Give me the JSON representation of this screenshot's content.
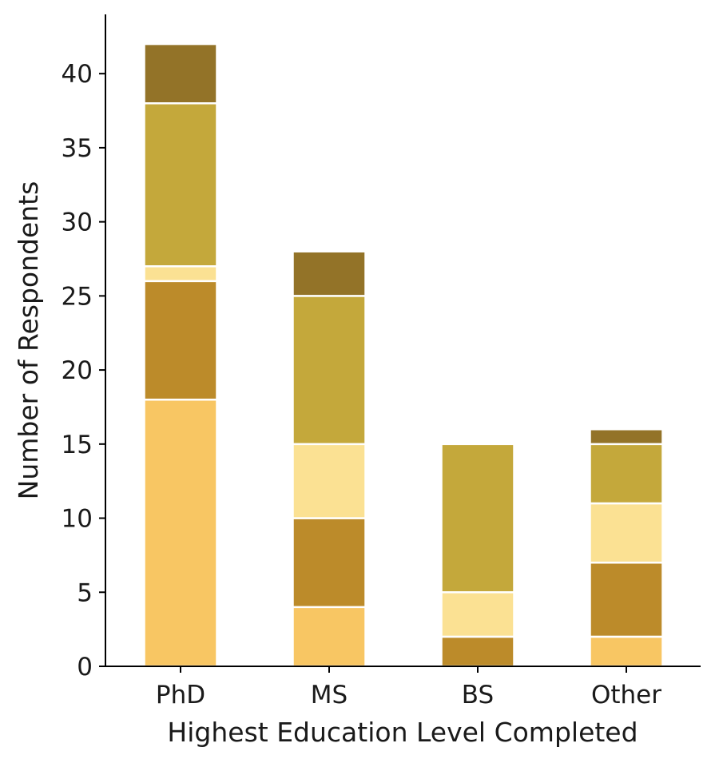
{
  "chart_data": {
    "type": "bar",
    "stacked": true,
    "categories": [
      "PhD",
      "MS",
      "BS",
      "Other"
    ],
    "series": [
      {
        "values": [
          18,
          4,
          0,
          2
        ],
        "color": "#F8C663"
      },
      {
        "values": [
          8,
          6,
          2,
          5
        ],
        "color": "#BC8B2A"
      },
      {
        "values": [
          1,
          5,
          3,
          4
        ],
        "color": "#FBE193"
      },
      {
        "values": [
          11,
          10,
          10,
          4
        ],
        "color": "#C4A83B"
      },
      {
        "values": [
          4,
          3,
          0,
          1
        ],
        "color": "#937328"
      }
    ],
    "xlabel": "Highest Education Level Completed",
    "ylabel": "Number of Respondents",
    "yticks": [
      0,
      5,
      10,
      15,
      20,
      25,
      30,
      35,
      40
    ],
    "ylim": [
      0,
      44
    ],
    "grid": false,
    "legend": "none"
  }
}
